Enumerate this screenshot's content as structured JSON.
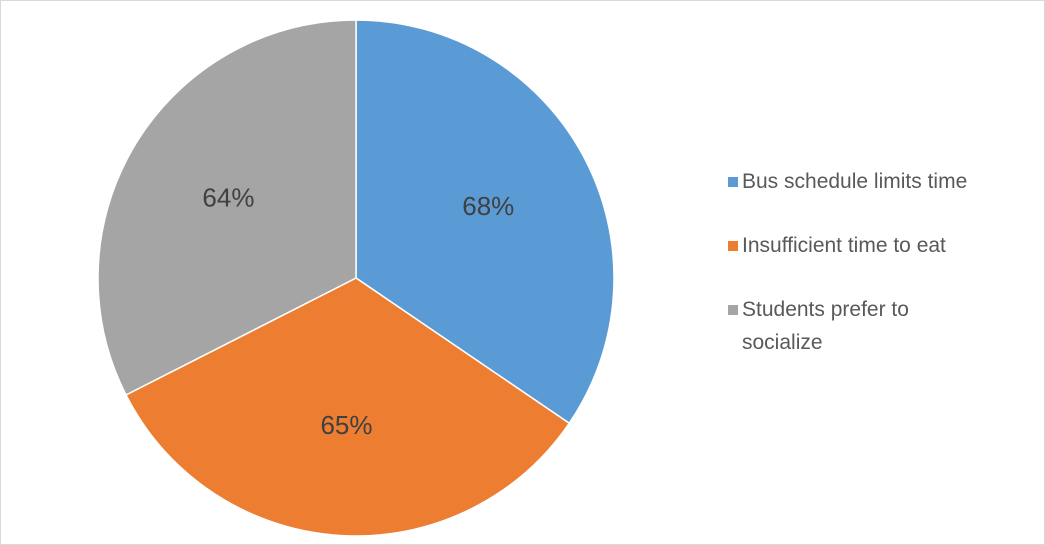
{
  "chart_data": {
    "type": "pie",
    "categories": [
      "Bus schedule limits time",
      "Insufficient time to eat",
      "Students prefer to socialize"
    ],
    "values": [
      68,
      65,
      64
    ],
    "value_labels": [
      "68%",
      "65%",
      "64%"
    ],
    "colors": [
      "#5b9bd5",
      "#ed7d31",
      "#a5a5a5"
    ],
    "legend": "right"
  }
}
